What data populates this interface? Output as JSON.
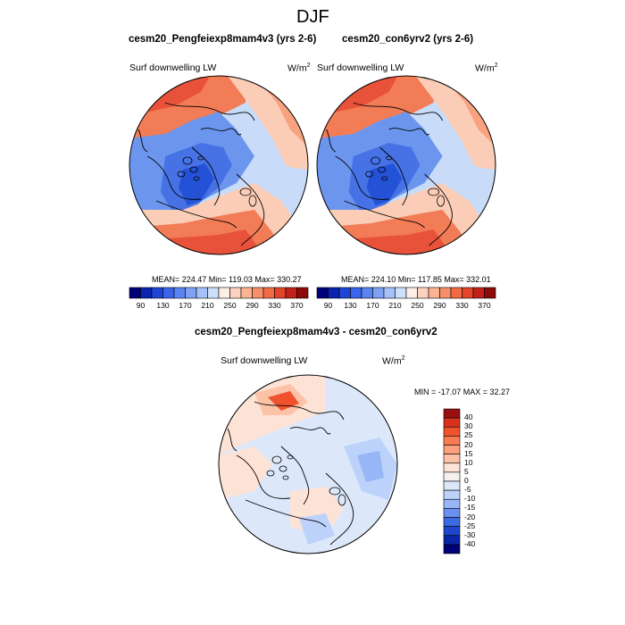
{
  "figure": {
    "title": "DJF"
  },
  "panels": [
    {
      "title": "cesm20_Pengfeiexp8mam4v3 (yrs 2-6)",
      "variable": "Surf downwelling LW",
      "units": "W/m",
      "units_sup": "2",
      "stats": "MEAN= 224.47  Min= 119.03  Max= 330.27"
    },
    {
      "title": "cesm20_con6yrv2 (yrs 2-6)",
      "variable": "Surf downwelling LW",
      "units": "W/m",
      "units_sup": "2",
      "stats": "MEAN= 224.10  Min= 117.85  Max= 332.01"
    },
    {
      "title": "cesm20_Pengfeiexp8mam4v3 - cesm20_con6yrv2",
      "variable": "Surf downwelling LW",
      "units": "W/m",
      "units_sup": "2",
      "stats": "MIN = -17.07 MAX =  32.27"
    }
  ],
  "colorbar_top": {
    "tick_labels": [
      "90",
      "130",
      "170",
      "210",
      "250",
      "290",
      "330",
      "370"
    ],
    "colors": [
      "#00007a",
      "#0a24b0",
      "#1e44d8",
      "#3a64ea",
      "#5a84f0",
      "#80a2f4",
      "#a6c0f8",
      "#cce0fc",
      "#fdeee6",
      "#fcd2be",
      "#fbb394",
      "#f7906a",
      "#f36a44",
      "#e3442a",
      "#c2221a",
      "#8c0a0a"
    ]
  },
  "colorbar_diff": {
    "tick_labels": [
      "40",
      "30",
      "25",
      "20",
      "15",
      "10",
      "5",
      "0",
      "-5",
      "-10",
      "-15",
      "-20",
      "-25",
      "-30",
      "-40"
    ],
    "colors": [
      "#9a1010",
      "#d8321e",
      "#f0522e",
      "#fa7a50",
      "#fca07e",
      "#fcc2a8",
      "#fde2d6",
      "#f5f0ee",
      "#dce8fa",
      "#bcd2fa",
      "#96b6f6",
      "#6a90ee",
      "#3c6ae2",
      "#1e46cc",
      "#0a26a8",
      "#000078"
    ]
  },
  "map_palette": {
    "darkblue": "#2452d6",
    "blue": "#4672e6",
    "midblue": "#6c96ee",
    "lightblue": "#9cbcf6",
    "paleblue": "#c8dcfa",
    "pale": "#fbe9e0",
    "peach": "#fbcdb6",
    "salmon": "#f8a280",
    "orange": "#f27c56",
    "red": "#e8523a",
    "darkred": "#c43222"
  }
}
